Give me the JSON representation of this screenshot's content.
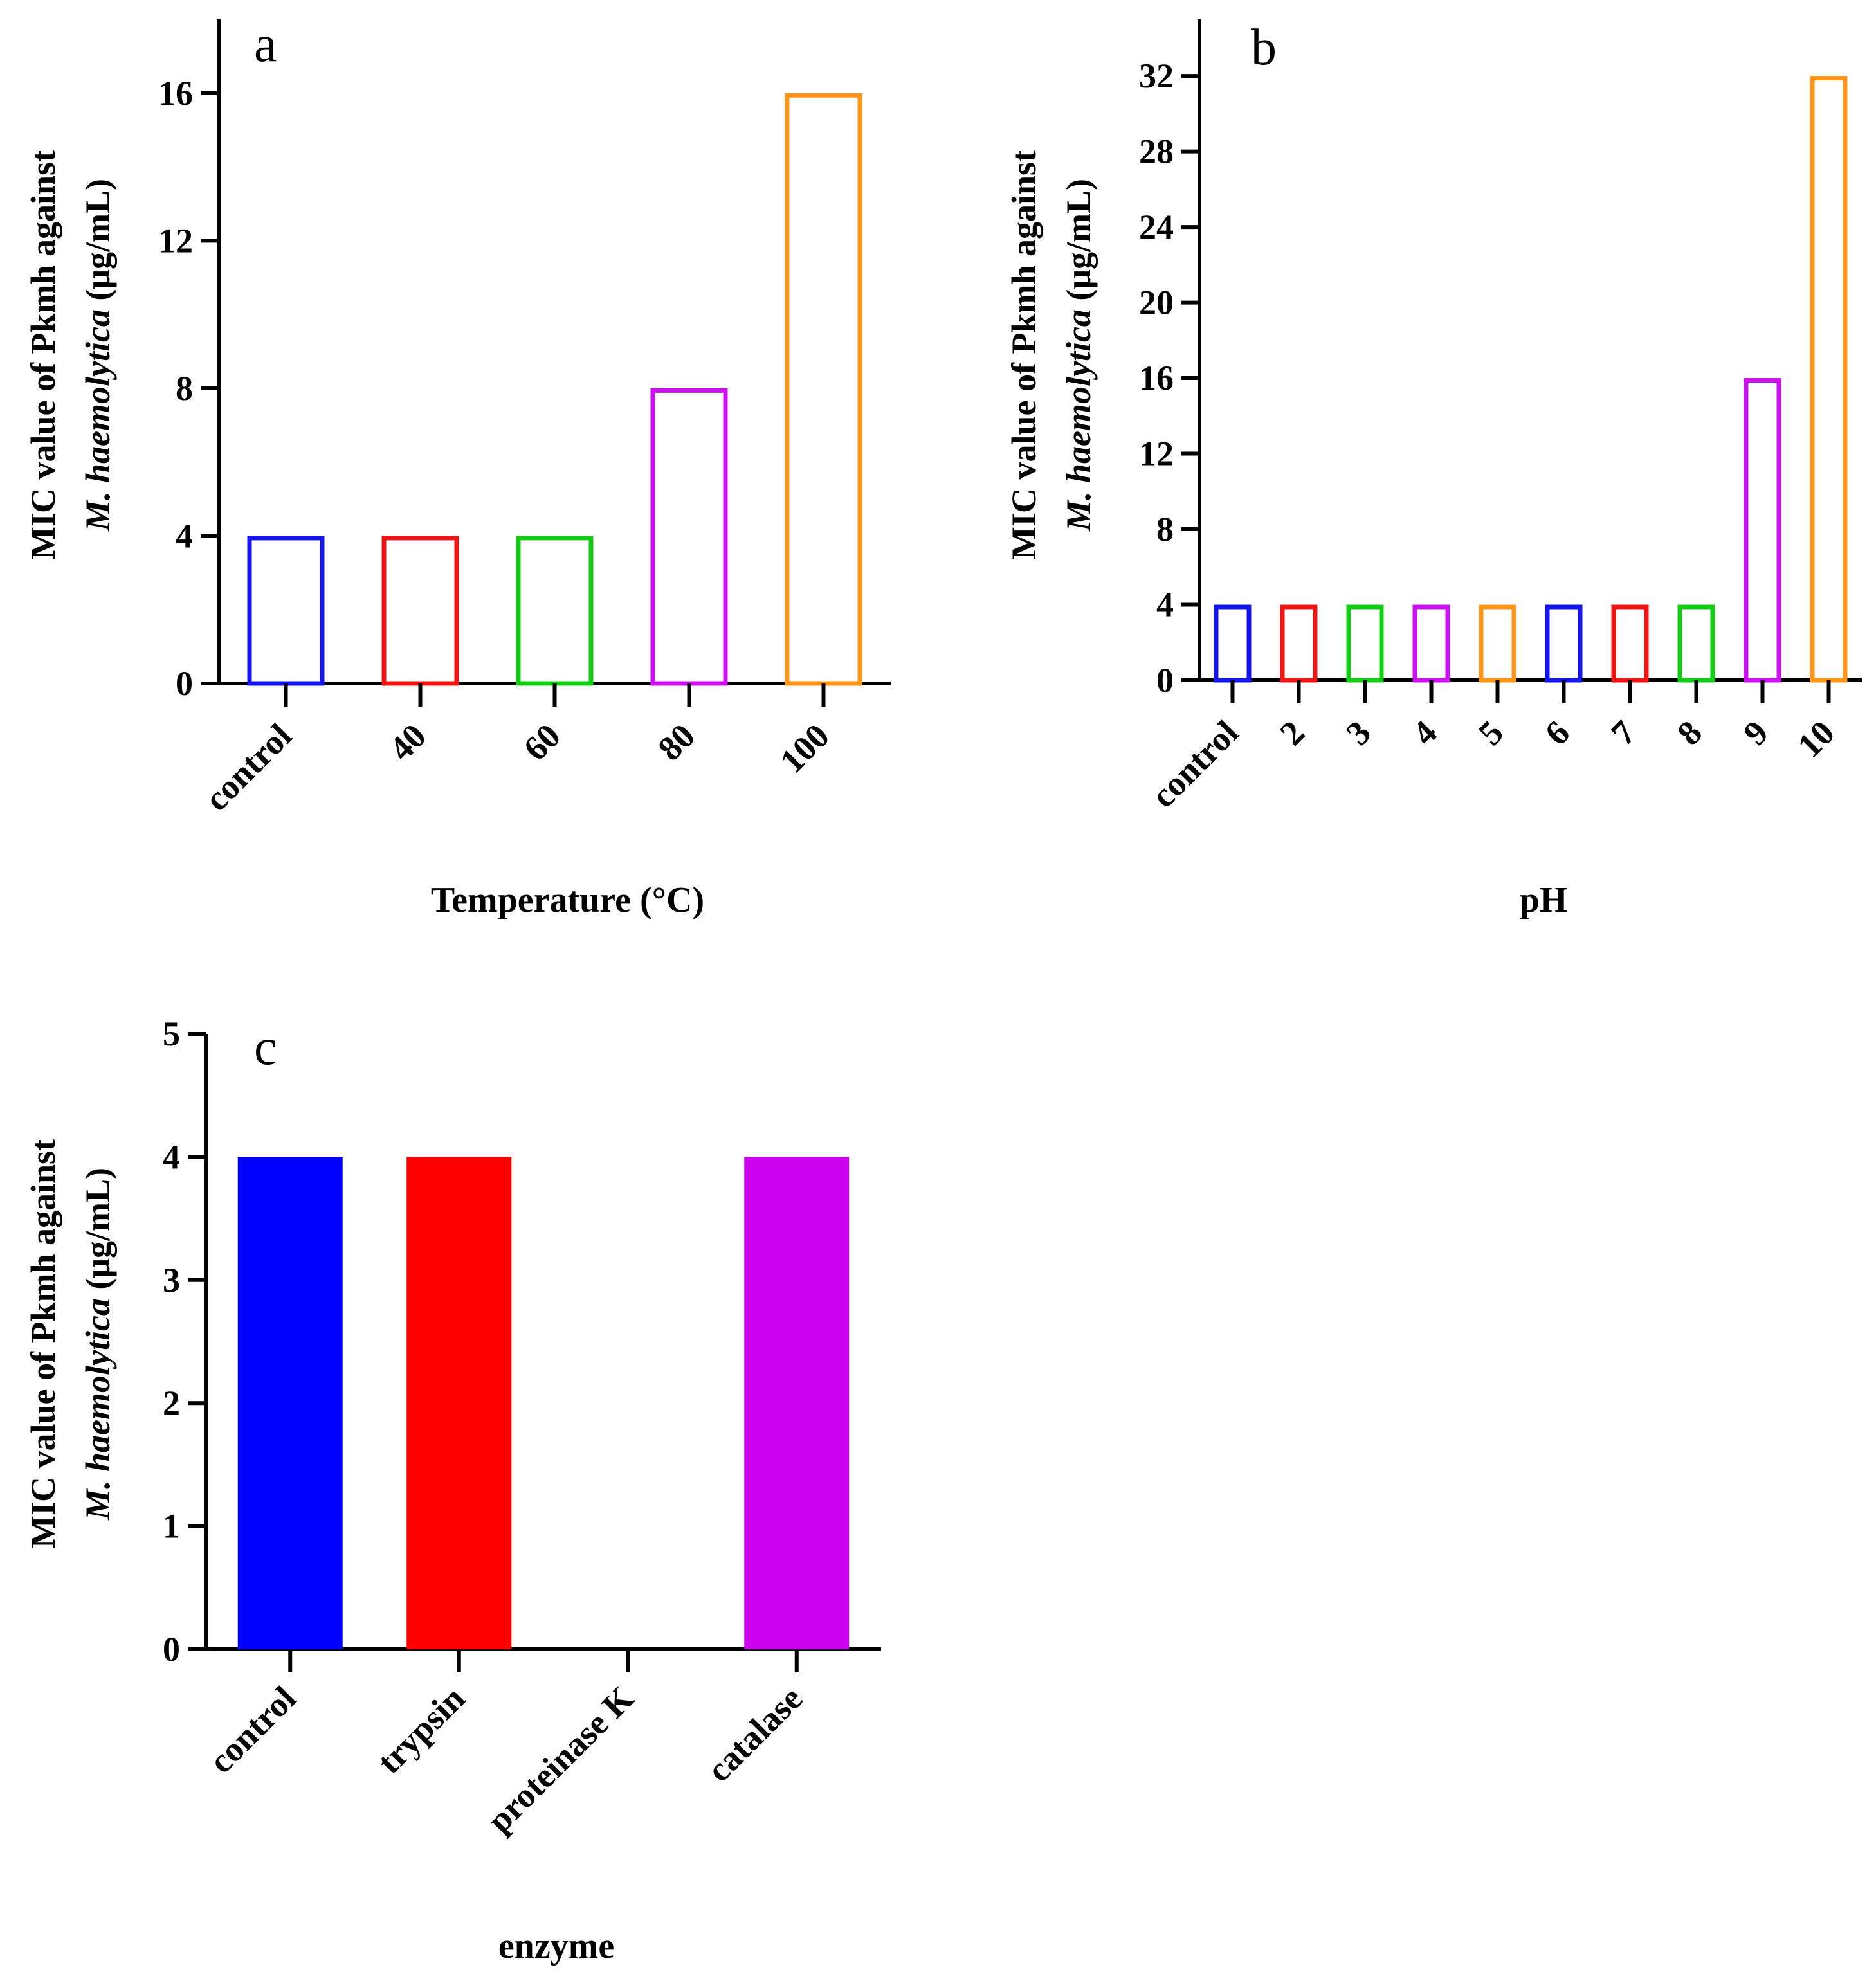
{
  "chart_data": [
    {
      "type": "bar",
      "panel_label": "a",
      "style": "outline",
      "categories": [
        "control",
        "40",
        "60",
        "80",
        "100"
      ],
      "values": [
        4,
        4,
        4,
        8,
        16
      ],
      "colors": [
        "#1515ee",
        "#ee1515",
        "#15cc15",
        "#cc11ee",
        "#ff9418"
      ],
      "ylabel_line1": "MIC value of Pkmh against",
      "ylabel_line2_italic": "M. haemolytica",
      "ylabel_line2_rest": " (μg/mL)",
      "xlabel": "Temperature (°C)",
      "yticks": [
        0,
        4,
        8,
        12,
        16
      ],
      "ylim": [
        0,
        18
      ]
    },
    {
      "type": "bar",
      "panel_label": "b",
      "style": "outline",
      "categories": [
        "control",
        "2",
        "3",
        "4",
        "5",
        "6",
        "7",
        "8",
        "9",
        "10"
      ],
      "values": [
        4,
        4,
        4,
        4,
        4,
        4,
        4,
        4,
        16,
        32
      ],
      "colors": [
        "#1515ee",
        "#ee1515",
        "#15cc15",
        "#cc11ee",
        "#ff9418",
        "#1515ee",
        "#ee1515",
        "#15cc15",
        "#cc11ee",
        "#ff9418"
      ],
      "ylabel_line1": "MIC value of Pkmh against",
      "ylabel_line2_italic": "M. haemolytica",
      "ylabel_line2_rest": " (μg/mL)",
      "xlabel": "pH",
      "yticks": [
        0,
        4,
        8,
        12,
        16,
        20,
        24,
        28,
        32
      ],
      "ylim": [
        0,
        35
      ]
    },
    {
      "type": "bar",
      "panel_label": "c",
      "style": "filled",
      "categories": [
        "control",
        "trypsin",
        "proteinase K",
        "catalase"
      ],
      "values": [
        4,
        4,
        0,
        4
      ],
      "colors": [
        "#0000ff",
        "#ff0000",
        "#00cc00",
        "#cc00ee"
      ],
      "ylabel_line1": "MIC value of Pkmh against",
      "ylabel_line2_italic": "M. haemolytica",
      "ylabel_line2_rest": " (μg/mL)",
      "xlabel": "enzyme",
      "yticks": [
        0,
        1,
        2,
        3,
        4,
        5
      ],
      "ylim": [
        0,
        5
      ]
    }
  ]
}
